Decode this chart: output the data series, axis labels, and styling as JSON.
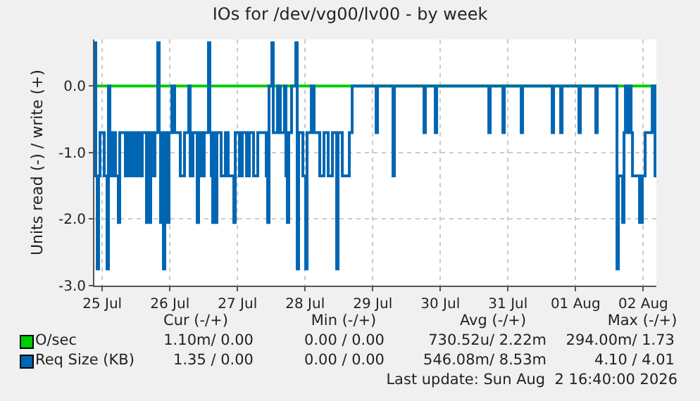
{
  "chart_data": {
    "type": "step",
    "title": "IOs for /dev/vg00/lv00 - by week",
    "ylabel": "Units read (-) / write (+)",
    "xlim": [
      "2026-07-25T09:12",
      "2026-08-02T16:40"
    ],
    "xticks": [
      {
        "value": "2026-07-25T12:00",
        "label": "25 Jul"
      },
      {
        "value": "2026-07-26T12:00",
        "label": "26 Jul"
      },
      {
        "value": "2026-07-27T12:00",
        "label": "27 Jul"
      },
      {
        "value": "2026-07-28T12:00",
        "label": "28 Jul"
      },
      {
        "value": "2026-07-29T12:00",
        "label": "29 Jul"
      },
      {
        "value": "2026-07-30T12:00",
        "label": "30 Jul"
      },
      {
        "value": "2026-07-31T12:00",
        "label": "31 Jul"
      },
      {
        "value": "2026-08-01T12:00",
        "label": "01 Aug"
      },
      {
        "value": "2026-08-02T12:00",
        "label": "02 Aug"
      }
    ],
    "ylim": [
      -3,
      0.7
    ],
    "yticks": [
      {
        "value": 0,
        "label": "0.0"
      },
      {
        "value": -1,
        "label": "-1.0"
      },
      {
        "value": -2,
        "label": "-2.0"
      },
      {
        "value": -3,
        "label": "-3.0"
      }
    ],
    "grid": true,
    "legend": "bottom",
    "marker": "none",
    "line_style": "solid",
    "series": [
      {
        "name": "O/sec",
        "color": "#00cc00",
        "x": [
          "2026-07-25T09:12",
          "2026-08-02T16:40"
        ],
        "values": [
          0,
          0
        ]
      },
      {
        "name": "Req Size (KB)",
        "color": "#0066b3",
        "x": [
          "2026-07-25T09:12",
          "2026-07-25T09:42",
          "2026-07-25T10:12",
          "2026-07-25T10:42",
          "2026-07-25T11:12",
          "2026-07-25T12:42",
          "2026-07-25T13:42",
          "2026-07-25T14:12",
          "2026-07-25T14:42",
          "2026-07-25T15:42",
          "2026-07-25T16:42",
          "2026-07-25T17:42",
          "2026-07-25T18:12",
          "2026-07-25T20:12",
          "2026-07-25T21:12",
          "2026-07-25T22:12",
          "2026-07-25T23:12",
          "2026-07-26T00:12",
          "2026-07-26T00:42",
          "2026-07-26T01:42",
          "2026-07-26T02:12",
          "2026-07-26T03:42",
          "2026-07-26T04:12",
          "2026-07-26T04:42",
          "2026-07-26T05:12",
          "2026-07-26T06:12",
          "2026-07-26T06:42",
          "2026-07-26T07:42",
          "2026-07-26T08:12",
          "2026-07-26T08:42",
          "2026-07-26T09:12",
          "2026-07-26T09:42",
          "2026-07-26T10:12",
          "2026-07-26T10:42",
          "2026-07-26T11:12",
          "2026-07-26T11:42",
          "2026-07-26T12:42",
          "2026-07-26T13:42",
          "2026-07-26T15:42",
          "2026-07-26T17:12",
          "2026-07-26T18:42",
          "2026-07-26T19:12",
          "2026-07-26T20:12",
          "2026-07-26T21:42",
          "2026-07-26T22:12",
          "2026-07-26T23:12",
          "2026-07-27T00:12",
          "2026-07-27T01:42",
          "2026-07-27T02:12",
          "2026-07-27T02:42",
          "2026-07-27T03:12",
          "2026-07-27T03:42",
          "2026-07-27T04:12",
          "2026-07-27T04:42",
          "2026-07-27T06:12",
          "2026-07-27T07:42",
          "2026-07-27T08:42",
          "2026-07-27T10:42",
          "2026-07-27T11:12",
          "2026-07-27T12:42",
          "2026-07-27T13:42",
          "2026-07-27T15:12",
          "2026-07-27T16:12",
          "2026-07-27T17:42",
          "2026-07-27T19:12",
          "2026-07-27T22:12",
          "2026-07-27T22:42",
          "2026-07-27T23:12",
          "2026-07-28T00:12",
          "2026-07-28T00:42",
          "2026-07-28T02:12",
          "2026-07-28T03:12",
          "2026-07-28T04:42",
          "2026-07-28T05:12",
          "2026-07-28T05:42",
          "2026-07-28T06:12",
          "2026-07-28T07:12",
          "2026-07-28T08:42",
          "2026-07-28T09:12",
          "2026-07-28T09:42",
          "2026-07-28T11:12",
          "2026-07-28T12:12",
          "2026-07-28T12:42",
          "2026-07-28T14:12",
          "2026-07-28T15:12",
          "2026-07-28T17:12",
          "2026-07-28T18:42",
          "2026-07-28T20:12",
          "2026-07-28T21:42",
          "2026-07-28T23:12",
          "2026-07-28T23:42",
          "2026-07-29T01:12",
          "2026-07-29T03:42",
          "2026-07-29T04:42",
          "2026-07-29T13:12",
          "2026-07-29T13:42",
          "2026-07-29T19:12",
          "2026-07-29T19:42",
          "2026-07-30T06:12",
          "2026-07-30T06:42",
          "2026-07-30T10:12",
          "2026-07-30T10:42",
          "2026-07-31T05:12",
          "2026-07-31T05:42",
          "2026-07-31T10:12",
          "2026-07-31T10:42",
          "2026-07-31T16:42",
          "2026-07-31T17:12",
          "2026-08-01T03:42",
          "2026-08-01T04:12",
          "2026-08-01T06:42",
          "2026-08-01T07:12",
          "2026-08-01T13:12",
          "2026-08-01T13:42",
          "2026-08-01T19:12",
          "2026-08-01T19:42",
          "2026-08-02T02:42",
          "2026-08-02T03:12",
          "2026-08-02T04:42",
          "2026-08-02T05:12",
          "2026-08-02T05:42",
          "2026-08-02T06:12",
          "2026-08-02T07:12",
          "2026-08-02T07:42",
          "2026-08-02T08:12",
          "2026-08-02T10:42",
          "2026-08-02T11:42",
          "2026-08-02T12:42",
          "2026-08-02T15:12",
          "2026-08-02T16:12",
          "2026-08-02T16:40"
        ],
        "values": [
          0.65,
          -1.35,
          -2.75,
          -1.35,
          -0.7,
          -1.35,
          -2.75,
          0,
          -1.35,
          -0.7,
          -1.35,
          -2.05,
          -0.7,
          -1.35,
          -0.7,
          -1.35,
          -0.7,
          -1.35,
          -0.7,
          -1.35,
          -0.7,
          -2.05,
          -0.7,
          -2.05,
          -0.7,
          -1.35,
          -0.7,
          0.65,
          -0.7,
          -2.05,
          -0.7,
          -2.75,
          -0.7,
          -1.35,
          -2.05,
          -0.7,
          0,
          -0.7,
          -1.35,
          -0.7,
          0,
          -1.35,
          -0.7,
          -2.05,
          -0.7,
          -1.35,
          -0.7,
          0.65,
          -0.7,
          -1.35,
          -2.05,
          -0.7,
          -2.05,
          -0.7,
          -1.35,
          -0.7,
          -1.35,
          -2.05,
          -0.7,
          -1.35,
          -0.7,
          -1.35,
          -0.7,
          -1.35,
          -0.7,
          -1.35,
          -2.05,
          0,
          0.65,
          -0.7,
          0,
          -0.7,
          0,
          -1.35,
          -2.05,
          -0.7,
          0,
          0.65,
          -2.75,
          -0.7,
          -1.35,
          -2.75,
          -0.7,
          0,
          -0.7,
          -1.35,
          -0.7,
          -1.35,
          -0.7,
          -2.75,
          -0.7,
          -1.35,
          -0.7,
          0,
          -0.7,
          0,
          -1.35,
          0,
          -0.7,
          0,
          -0.7,
          0,
          -0.7,
          0,
          -0.7,
          0,
          -0.7,
          0,
          -0.7,
          0,
          -0.7,
          0,
          -0.7,
          0,
          -0.7,
          0,
          -2.75,
          -1.35,
          -2.05,
          -0.7,
          0,
          -0.7,
          0,
          -0.7,
          -1.35,
          -2.05,
          -1.35,
          -0.7,
          0,
          -1.35,
          -1.35
        ]
      }
    ],
    "annotations": [
      "Cur (-/+)",
      "Min (-/+)",
      "Avg (-/+)",
      "Max (-/+)",
      "1.10m/ 0.00",
      "0.00 / 0.00",
      "730.52u/ 2.22m",
      "294.00m/ 1.73",
      "1.35 / 0.00",
      "0.00 / 0.00",
      "546.08m/ 8.53m",
      "4.10 / 4.01",
      "Last update: Sun Aug  2 16:40:00 2026"
    ]
  }
}
